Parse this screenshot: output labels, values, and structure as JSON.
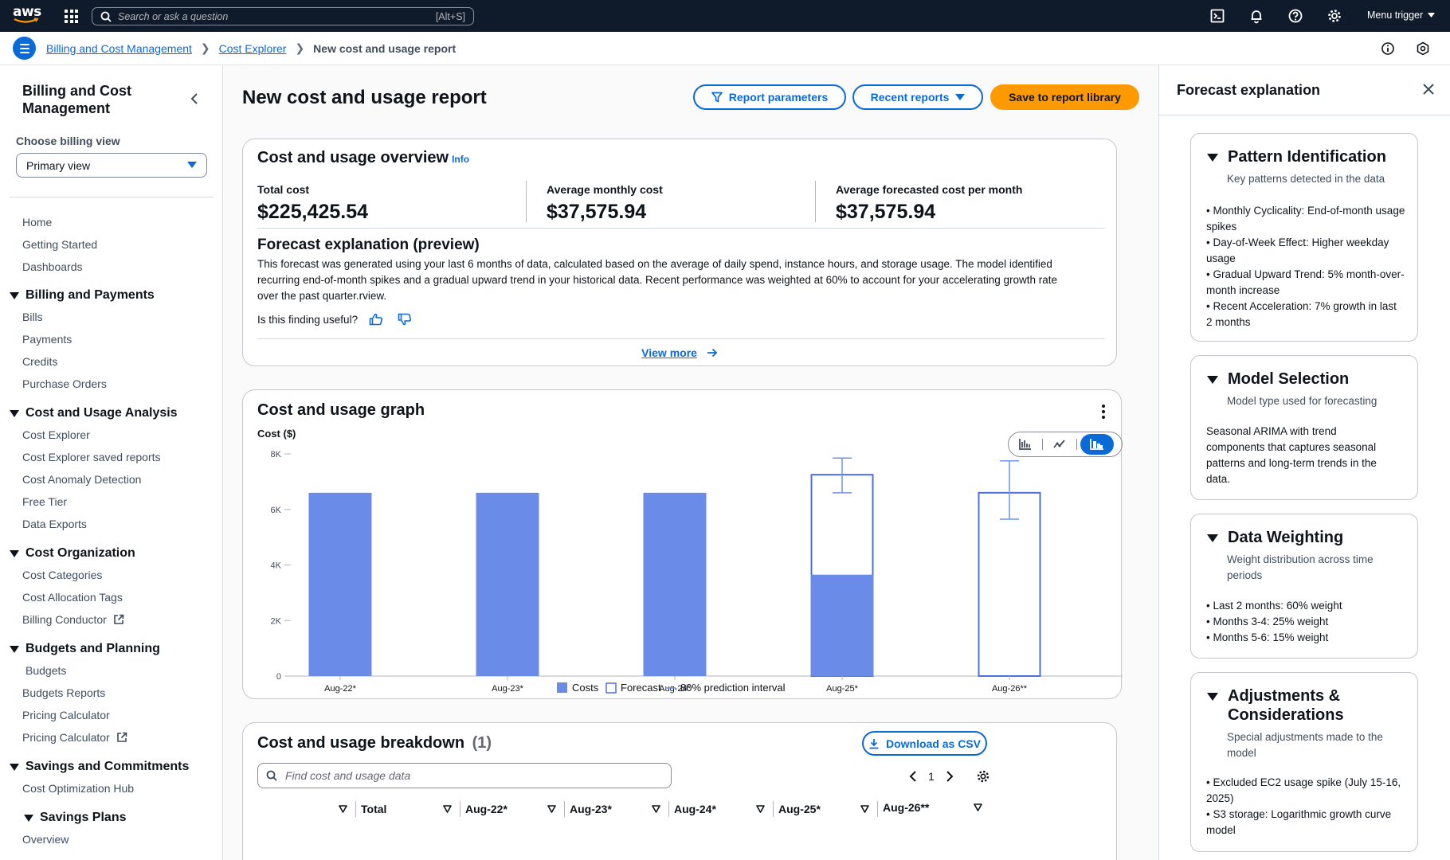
{
  "topnav": {
    "logo": "aws",
    "search_placeholder": "Search or ask a question",
    "search_shortcut": "[Alt+S]",
    "menu_trigger": "Menu trigger"
  },
  "breadcrumbs": {
    "items": [
      "Billing and Cost Management",
      "Cost Explorer"
    ],
    "current": "New cost and usage report"
  },
  "sidebar": {
    "title": "Billing and Cost Management",
    "billing_view_label": "Choose billing view",
    "billing_view_value": "Primary view",
    "top_items": [
      "Home",
      "Getting Started",
      "Dashboards"
    ],
    "sections": [
      {
        "title": "Billing and Payments",
        "items": [
          "Bills",
          "Payments",
          "Credits",
          "Purchase Orders"
        ]
      },
      {
        "title": "Cost and Usage Analysis",
        "items": [
          "Cost Explorer",
          "Cost Explorer saved reports",
          "Cost Anomaly Detection",
          "Free Tier",
          "Data Exports"
        ]
      },
      {
        "title": "Cost Organization",
        "items": [
          "Cost Categories",
          "Cost Allocation Tags",
          "Billing Conductor"
        ]
      },
      {
        "title": "Budgets and Planning",
        "items": [
          "Budgets",
          "Budgets Reports",
          "Pricing Calculator",
          "Pricing Calculator"
        ]
      },
      {
        "title": "Savings and Commitments",
        "items": [
          "Cost Optimization Hub"
        ]
      }
    ],
    "subsection": {
      "title": "Savings Plans",
      "items": [
        "Overview"
      ]
    }
  },
  "header": {
    "title": "New cost and usage report",
    "report_parameters": "Report parameters",
    "recent_reports": "Recent reports",
    "save": "Save to report library"
  },
  "overview": {
    "title": "Cost and usage overview",
    "info": "Info",
    "kpis": [
      {
        "label": "Total cost",
        "value": "$225,425.54"
      },
      {
        "label": "Average monthly cost",
        "value": "$37,575.94"
      },
      {
        "label": "Average forecasted cost per month",
        "value": "$37,575.94"
      }
    ],
    "forecast_title": "Forecast explanation (preview)",
    "forecast_body": "This forecast was generated using your last 6 months of data, calculated based on the average of daily spend, instance hours, and storage usage. The model identified recurring end-of-month spikes and a gradual upward trend in your historical data. Recent performance was weighted at 60% to account for your accelerating growth rate over the past quarter.rview.",
    "useful_question": "Is this finding useful?",
    "view_more": "View more"
  },
  "graph": {
    "title": "Cost and usage graph",
    "colors": {
      "cost": "#6b8be9",
      "forecast_border": "#4f6fe0",
      "interval": "#6f93e6"
    }
  },
  "chart_data": {
    "type": "bar",
    "title": "Cost and usage graph",
    "ylabel": "Cost ($)",
    "xlabel": "",
    "ylim": [
      0,
      8000
    ],
    "yticks": [
      0,
      2000,
      4000,
      6000,
      8000
    ],
    "ytick_labels": [
      "0",
      "2K",
      "4K",
      "6K",
      "8K"
    ],
    "categories": [
      "Aug-22*",
      "Aug-23*",
      "Aug-24*",
      "Aug-25*",
      "Aug-26**"
    ],
    "series": [
      {
        "name": "Costs",
        "values": [
          6600,
          6600,
          6600,
          3650,
          0
        ]
      },
      {
        "name": "Forecast",
        "values": [
          0,
          0,
          0,
          7250,
          6600
        ]
      }
    ],
    "prediction_interval": [
      null,
      null,
      null,
      [
        6600,
        7850
      ],
      [
        5650,
        7750
      ]
    ],
    "legend": [
      "Costs",
      "Forecast",
      "80% prediction interval"
    ]
  },
  "breakdown": {
    "title": "Cost and usage breakdown",
    "count": "(1)",
    "download": "Download as CSV",
    "search_placeholder": "Find cost and usage data",
    "page": "1",
    "columns": [
      "",
      "Total",
      "Aug-22*",
      "Aug-23*",
      "Aug-24*",
      "Aug-25*",
      "Aug-26**"
    ]
  },
  "right_panel": {
    "title": "Forecast explanation",
    "cards": [
      {
        "title": "Pattern Identification",
        "subtitle": "Key patterns detected in the data",
        "bullets": [
          "Monthly Cyclicality: End-of-month usage spikes",
          "Day-of-Week Effect: Higher weekday usage",
          "Gradual Upward Trend: 5% month-over-month increase",
          "Recent Acceleration: 7% growth in last 2 months"
        ]
      },
      {
        "title": "Model Selection",
        "subtitle": "Model type used for forecasting",
        "text": "Seasonal ARIMA with trend components that captures seasonal patterns and long-term trends in the data."
      },
      {
        "title": "Data Weighting",
        "subtitle": "Weight distribution across time periods",
        "bullets": [
          "Last 2 months: 60% weight",
          "Months 3-4: 25% weight",
          "Months 5-6: 15% weight"
        ]
      },
      {
        "title": "Adjustments & Considerations",
        "subtitle": "Special adjustments made to the model",
        "bullets": [
          "Excluded EC2 usage spike (July 15-16, 2025)",
          "S3 storage: Logarithmic growth curve model"
        ]
      }
    ]
  }
}
